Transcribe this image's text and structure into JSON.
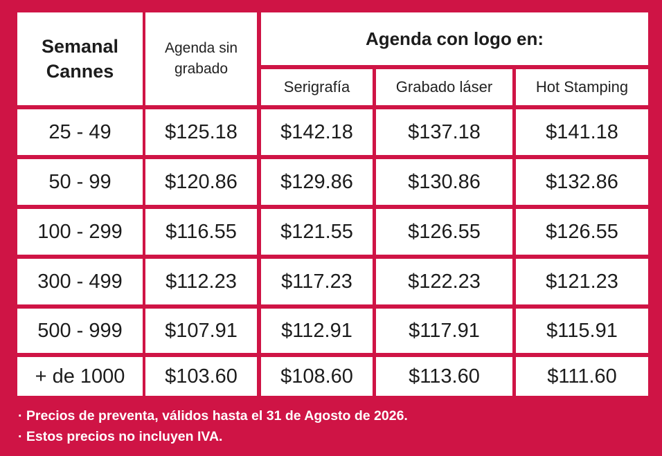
{
  "header": {
    "col1": "Semanal Cannes",
    "col2": "Agenda sin grabado",
    "group": "Agenda con logo en:",
    "sub": [
      "Serigrafía",
      "Grabado láser",
      "Hot Stamping"
    ]
  },
  "rows": [
    {
      "qty": "25 - 49",
      "sin": "$125.18",
      "seri": "$142.18",
      "laser": "$137.18",
      "hot": "$141.18"
    },
    {
      "qty": "50 - 99",
      "sin": "$120.86",
      "seri": "$129.86",
      "laser": "$130.86",
      "hot": "$132.86"
    },
    {
      "qty": "100 - 299",
      "sin": "$116.55",
      "seri": "$121.55",
      "laser": "$126.55",
      "hot": "$126.55"
    },
    {
      "qty": "300 - 499",
      "sin": "$112.23",
      "seri": "$117.23",
      "laser": "$122.23",
      "hot": "$121.23"
    },
    {
      "qty": "500 - 999",
      "sin": "$107.91",
      "seri": "$112.91",
      "laser": "$117.91",
      "hot": "$115.91"
    },
    {
      "qty": "+ de 1000",
      "sin": "$103.60",
      "seri": "$108.60",
      "laser": "$113.60",
      "hot": "$111.60"
    }
  ],
  "notes": [
    "· Precios de preventa, válidos hasta el 31 de Agosto de 2026.",
    "· Estos precios no incluyen IVA."
  ],
  "colors": {
    "background": "#cf1445",
    "cell": "#ffffff",
    "text": "#1c1c1c"
  }
}
